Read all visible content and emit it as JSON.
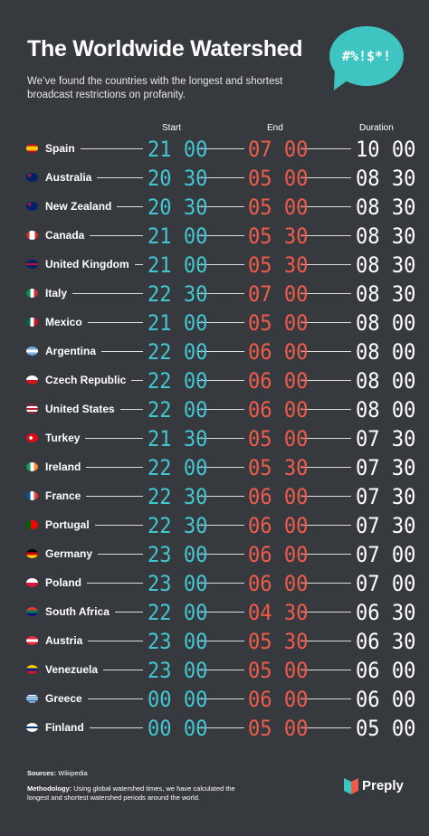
{
  "header": {
    "title": "The Worldwide Watershed",
    "subtitle": "We’ve found the countries with the longest and shortest broadcast restrictions on profanity.",
    "bubble_text": "#%!$*!"
  },
  "columns": {
    "start": "Start",
    "end": "End",
    "duration": "Duration"
  },
  "colors": {
    "background": "#363a3f",
    "start": "#44c6d0",
    "end": "#ef5b4b",
    "duration": "#ffffff",
    "accent": "#3ec5c2"
  },
  "chart_data": {
    "type": "table",
    "columns": [
      "Start",
      "End",
      "Duration"
    ],
    "rows": [
      {
        "country": "Spain",
        "flag": "spain-flag",
        "start": "21 00",
        "end": "07 00",
        "duration": "10 00"
      },
      {
        "country": "Australia",
        "flag": "australia-flag",
        "start": "20 30",
        "end": "05 00",
        "duration": "08 30"
      },
      {
        "country": "New Zealand",
        "flag": "new-zealand-flag",
        "start": "20 30",
        "end": "05 00",
        "duration": "08 30"
      },
      {
        "country": "Canada",
        "flag": "canada-flag",
        "start": "21 00",
        "end": "05 30",
        "duration": "08 30"
      },
      {
        "country": "United Kingdom",
        "flag": "uk-flag",
        "start": "21 00",
        "end": "05 30",
        "duration": "08 30"
      },
      {
        "country": "Italy",
        "flag": "italy-flag",
        "start": "22 30",
        "end": "07 00",
        "duration": "08 30"
      },
      {
        "country": "Mexico",
        "flag": "mexico-flag",
        "start": "21 00",
        "end": "05 00",
        "duration": "08 00"
      },
      {
        "country": "Argentina",
        "flag": "argentina-flag",
        "start": "22 00",
        "end": "06 00",
        "duration": "08 00"
      },
      {
        "country": "Czech Republic",
        "flag": "czech-flag",
        "start": "22 00",
        "end": "06 00",
        "duration": "08 00"
      },
      {
        "country": "United States",
        "flag": "usa-flag",
        "start": "22 00",
        "end": "06 00",
        "duration": "08 00"
      },
      {
        "country": "Turkey",
        "flag": "turkey-flag",
        "start": "21 30",
        "end": "05 00",
        "duration": "07 30"
      },
      {
        "country": "Ireland",
        "flag": "ireland-flag",
        "start": "22 00",
        "end": "05 30",
        "duration": "07 30"
      },
      {
        "country": "France",
        "flag": "france-flag",
        "start": "22 30",
        "end": "06 00",
        "duration": "07 30"
      },
      {
        "country": "Portugal",
        "flag": "portugal-flag",
        "start": "22 30",
        "end": "06 00",
        "duration": "07 30"
      },
      {
        "country": "Germany",
        "flag": "germany-flag",
        "start": "23 00",
        "end": "06 00",
        "duration": "07 00"
      },
      {
        "country": "Poland",
        "flag": "poland-flag",
        "start": "23 00",
        "end": "06 00",
        "duration": "07 00"
      },
      {
        "country": "South Africa",
        "flag": "south-africa-flag",
        "start": "22 00",
        "end": "04 30",
        "duration": "06 30"
      },
      {
        "country": "Austria",
        "flag": "austria-flag",
        "start": "23 00",
        "end": "05 30",
        "duration": "06 30"
      },
      {
        "country": "Venezuela",
        "flag": "venezuela-flag",
        "start": "23 00",
        "end": "05 00",
        "duration": "06 00"
      },
      {
        "country": "Greece",
        "flag": "greece-flag",
        "start": "00 00",
        "end": "06 00",
        "duration": "06 00"
      },
      {
        "country": "Finland",
        "flag": "finland-flag",
        "start": "00 00",
        "end": "05 00",
        "duration": "05 00"
      }
    ]
  },
  "footer": {
    "sources_label": "Sources:",
    "sources_text": "Wikipedia",
    "methodology_label": "Methodology:",
    "methodology_text": "Using global watershed times, we have calculated the longest and shortest watershed periods around the world.",
    "brand": "Preply"
  }
}
